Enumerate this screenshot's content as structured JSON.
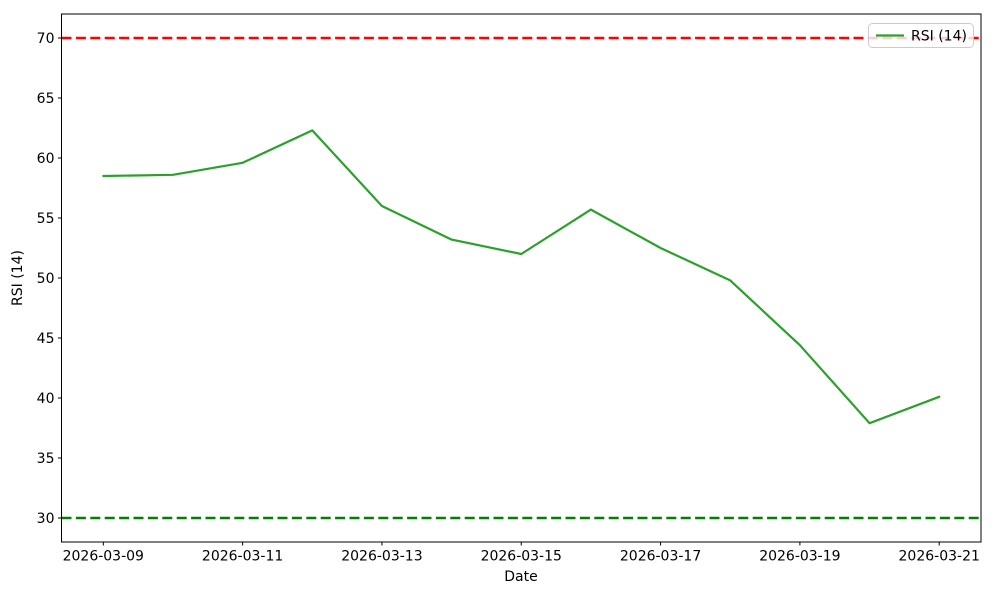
{
  "chart_data": {
    "type": "line",
    "title": "",
    "xlabel": "Date",
    "ylabel": "RSI (14)",
    "x": [
      "2026-03-09",
      "2026-03-10",
      "2026-03-11",
      "2026-03-12",
      "2026-03-13",
      "2026-03-14",
      "2026-03-15",
      "2026-03-16",
      "2026-03-17",
      "2026-03-18",
      "2026-03-19",
      "2026-03-20",
      "2026-03-21"
    ],
    "series": [
      {
        "name": "RSI (14)",
        "color": "#2ca02c",
        "values": [
          58.5,
          58.6,
          59.6,
          62.3,
          56.0,
          53.2,
          52.0,
          55.7,
          52.5,
          49.8,
          44.4,
          37.9,
          40.1
        ]
      }
    ],
    "reference_lines": [
      {
        "name": "overbought-threshold",
        "value": 70,
        "color": "#ff0000",
        "style": "dashed"
      },
      {
        "name": "oversold-threshold",
        "value": 30,
        "color": "#008000",
        "style": "dashed"
      }
    ],
    "ylim": [
      28,
      72
    ],
    "yticks": [
      30,
      35,
      40,
      45,
      50,
      55,
      60,
      65,
      70
    ],
    "xticks": [
      "2026-03-09",
      "2026-03-11",
      "2026-03-13",
      "2026-03-15",
      "2026-03-17",
      "2026-03-19",
      "2026-03-21"
    ],
    "xtick_day_step": 2,
    "grid": false,
    "legend": {
      "position": "upper-right",
      "entries": [
        "RSI (14)"
      ]
    },
    "background": "#ffffff"
  }
}
